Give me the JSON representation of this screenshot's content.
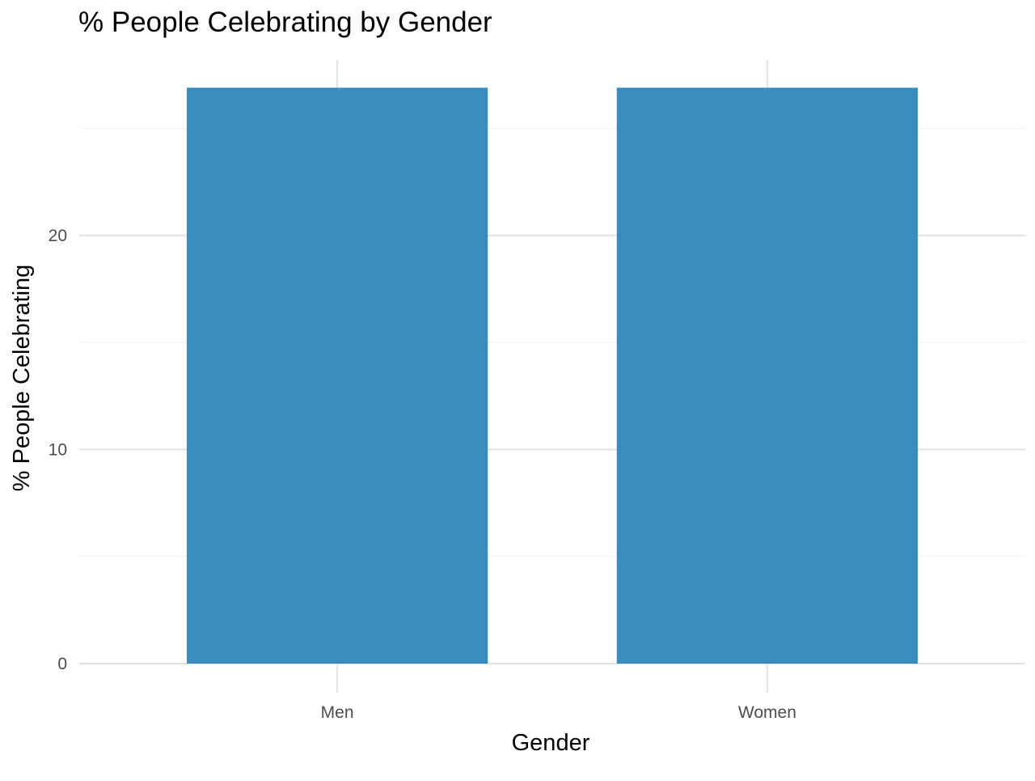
{
  "chart_data": {
    "type": "bar",
    "title": "% People Celebrating by Gender",
    "xlabel": "Gender",
    "ylabel": "% People Celebrating",
    "categories": [
      "Men",
      "Women"
    ],
    "values": [
      26.9,
      26.9
    ],
    "ylim": [
      0,
      28.2
    ],
    "yticks": [
      0,
      10,
      20
    ],
    "minor_yticks": [
      5,
      15,
      25
    ],
    "grid": true,
    "legend": "none",
    "colors": {
      "bar": "#388dbe",
      "grid_major": "#e3e3e3",
      "grid_minor": "#f4f4f4",
      "tick_label": "#4d4d4d",
      "text": "#000000"
    }
  }
}
